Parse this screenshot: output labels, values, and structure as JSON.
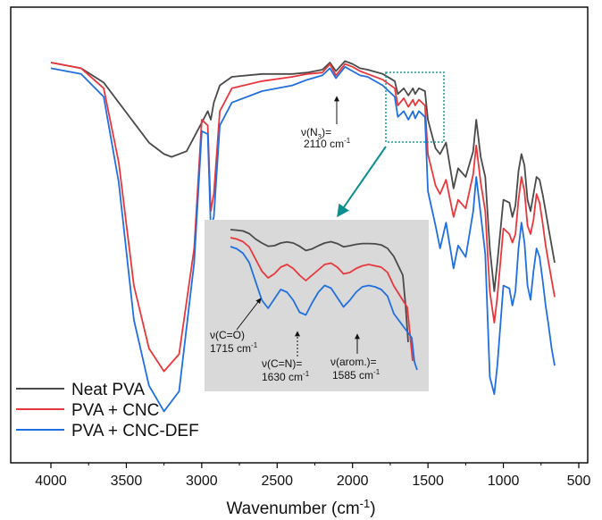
{
  "chart_data": {
    "type": "line",
    "title": "",
    "xlabel": "Wavenumber (cm",
    "xlabel_sup": "-1",
    "xlabel_close": ")",
    "ylabel": "",
    "xlim": [
      4000,
      500
    ],
    "xticks": [
      "4000",
      "3500",
      "3000",
      "2500",
      "2000",
      "1500",
      "1000",
      "500"
    ],
    "x_reversed": true,
    "grid": false,
    "legend_position": "bottom-left",
    "series": [
      {
        "name": "Neat PVA",
        "color": "#4a4a4a",
        "x": [
          4000,
          3800,
          3650,
          3550,
          3450,
          3350,
          3250,
          3200,
          3100,
          3000,
          2960,
          2940,
          2920,
          2880,
          2800,
          2600,
          2400,
          2300,
          2200,
          2150,
          2110,
          2050,
          2000,
          1950,
          1900,
          1800,
          1720,
          1700,
          1660,
          1630,
          1600,
          1585,
          1560,
          1520,
          1500,
          1450,
          1420,
          1380,
          1330,
          1300,
          1250,
          1200,
          1180,
          1150,
          1120,
          1090,
          1060,
          1040,
          1000,
          960,
          940,
          920,
          900,
          880,
          860,
          840,
          820,
          800,
          780,
          760,
          740,
          720,
          700,
          680,
          660
        ],
        "y": [
          4.0,
          3.8,
          3.3,
          2.6,
          1.9,
          1.2,
          0.8,
          0.7,
          0.9,
          1.9,
          2.3,
          2.0,
          2.6,
          3.2,
          3.5,
          3.6,
          3.6,
          3.65,
          3.75,
          4.0,
          3.7,
          4.05,
          3.95,
          3.8,
          3.75,
          3.6,
          3.35,
          2.9,
          3.1,
          2.85,
          3.1,
          2.9,
          3.1,
          3.0,
          2.0,
          1.0,
          0.8,
          1.2,
          -0.4,
          0.3,
          0.0,
          0.9,
          2.0,
          0.7,
          0.0,
          -2.5,
          -4.0,
          -3.0,
          -0.8,
          -0.9,
          -1.4,
          -1.0,
          0.2,
          0.8,
          0.4,
          -0.8,
          -1.2,
          -0.6,
          0.0,
          -0.1,
          -0.6,
          -1.2,
          -1.8,
          -2.4,
          -3.0
        ]
      },
      {
        "name": "PVA + CNC",
        "color": "#e8373c",
        "x": [
          4000,
          3800,
          3650,
          3550,
          3450,
          3350,
          3250,
          3150,
          3050,
          3000,
          2960,
          2940,
          2920,
          2880,
          2800,
          2600,
          2400,
          2300,
          2200,
          2150,
          2110,
          2050,
          2000,
          1950,
          1900,
          1800,
          1720,
          1700,
          1660,
          1630,
          1600,
          1585,
          1560,
          1520,
          1500,
          1450,
          1420,
          1380,
          1330,
          1300,
          1250,
          1200,
          1180,
          1150,
          1120,
          1090,
          1060,
          1040,
          1000,
          960,
          940,
          920,
          900,
          880,
          860,
          840,
          820,
          800,
          780,
          760,
          740,
          720,
          700,
          680,
          660
        ],
        "y": [
          4.0,
          3.8,
          3.1,
          0.5,
          -3.8,
          -6.0,
          -6.8,
          -6.2,
          -2.5,
          2.0,
          1.8,
          -1.2,
          -0.6,
          2.3,
          3.1,
          3.35,
          3.5,
          3.6,
          3.65,
          3.95,
          3.55,
          3.95,
          3.85,
          3.7,
          3.6,
          3.4,
          3.1,
          2.5,
          2.75,
          2.45,
          2.7,
          2.5,
          2.7,
          2.5,
          0.8,
          -0.3,
          -0.6,
          -0.1,
          -1.4,
          -0.8,
          -1.1,
          0.1,
          1.1,
          -0.2,
          -1.2,
          -4.0,
          -5.1,
          -4.2,
          -1.8,
          -2.0,
          -2.3,
          -2.0,
          -0.8,
          0.0,
          -0.5,
          -1.7,
          -2.0,
          -1.5,
          -0.6,
          -0.9,
          -1.6,
          -2.4,
          -3.0,
          -3.6,
          -4.2
        ]
      },
      {
        "name": "PVA + CNC-DEF",
        "color": "#1f6fe0",
        "x": [
          4000,
          3800,
          3650,
          3550,
          3450,
          3350,
          3250,
          3150,
          3050,
          3000,
          2960,
          2940,
          2920,
          2880,
          2800,
          2600,
          2400,
          2300,
          2200,
          2150,
          2110,
          2050,
          2000,
          1950,
          1900,
          1800,
          1720,
          1700,
          1660,
          1630,
          1600,
          1585,
          1560,
          1520,
          1500,
          1450,
          1420,
          1380,
          1330,
          1300,
          1250,
          1200,
          1180,
          1150,
          1120,
          1090,
          1060,
          1040,
          1000,
          960,
          940,
          920,
          900,
          880,
          860,
          840,
          820,
          800,
          780,
          760,
          740,
          720,
          700,
          680,
          660
        ],
        "y": [
          3.8,
          3.6,
          2.8,
          -0.2,
          -5.0,
          -7.3,
          -8.2,
          -7.5,
          -3.0,
          1.6,
          1.5,
          -1.8,
          -1.4,
          1.8,
          2.6,
          3.0,
          3.2,
          3.4,
          3.55,
          3.8,
          3.45,
          3.85,
          3.7,
          3.55,
          3.5,
          3.2,
          2.8,
          2.1,
          2.3,
          2.0,
          2.3,
          2.05,
          2.3,
          2.1,
          -0.5,
          -1.7,
          -2.5,
          -1.6,
          -3.2,
          -2.4,
          -2.8,
          -1.2,
          0.0,
          -1.3,
          -2.7,
          -7.0,
          -7.6,
          -6.6,
          -3.8,
          -3.9,
          -4.5,
          -4.0,
          -2.5,
          -1.6,
          -2.3,
          -3.8,
          -4.3,
          -3.3,
          -2.5,
          -2.8,
          -3.6,
          -4.5,
          -5.2,
          -6.0,
          -6.6
        ]
      }
    ],
    "inset": {
      "note": "zoomed region",
      "lines": [
        {
          "name": "Neat PVA",
          "color": "#4a4a4a",
          "y": [
            0.0,
            0.02,
            0.05,
            0.15,
            0.35,
            0.5,
            0.62,
            0.6,
            0.5,
            0.46,
            0.5,
            0.62,
            0.78,
            0.72,
            0.6,
            0.5,
            0.45,
            0.52,
            0.64,
            0.6,
            0.55,
            0.52,
            0.52,
            0.53,
            0.57,
            0.7,
            1.0,
            1.7,
            2.8,
            4.2
          ]
        },
        {
          "name": "PVA + CNC",
          "color": "#e8373c",
          "y": [
            0.0,
            0.05,
            0.15,
            0.35,
            0.8,
            1.25,
            1.5,
            1.35,
            1.1,
            1.0,
            1.15,
            1.4,
            1.6,
            1.4,
            1.2,
            1.0,
            0.95,
            1.1,
            1.35,
            1.3,
            1.15,
            1.05,
            1.0,
            1.05,
            1.1,
            1.3,
            1.8,
            2.6,
            3.6,
            4.6
          ]
        },
        {
          "name": "PVA + CNC-DEF",
          "color": "#1f6fe0",
          "y": [
            0.0,
            0.08,
            0.25,
            0.6,
            1.3,
            2.0,
            2.3,
            1.95,
            1.6,
            1.7,
            2.0,
            2.45,
            2.55,
            2.1,
            1.7,
            1.45,
            1.55,
            1.9,
            2.25,
            2.0,
            1.7,
            1.5,
            1.45,
            1.5,
            1.6,
            1.85,
            2.5,
            3.4,
            4.3,
            5.2
          ]
        }
      ]
    },
    "annotations": {
      "n3_label": "ν(N",
      "n3_sub": "3",
      "n3_eq": ")=",
      "n3_value": "2110 cm",
      "n3_value_sup": "-1",
      "co_label": "ν(C=O)",
      "co_value": "1715 cm",
      "co_value_sup": "-1",
      "cn_label": "ν(C=N)=",
      "cn_value": "1630 cm",
      "cn_value_sup": "-1",
      "arom_label": "ν(arom.)=",
      "arom_value": "1585 cm",
      "arom_value_sup": "-1"
    }
  }
}
